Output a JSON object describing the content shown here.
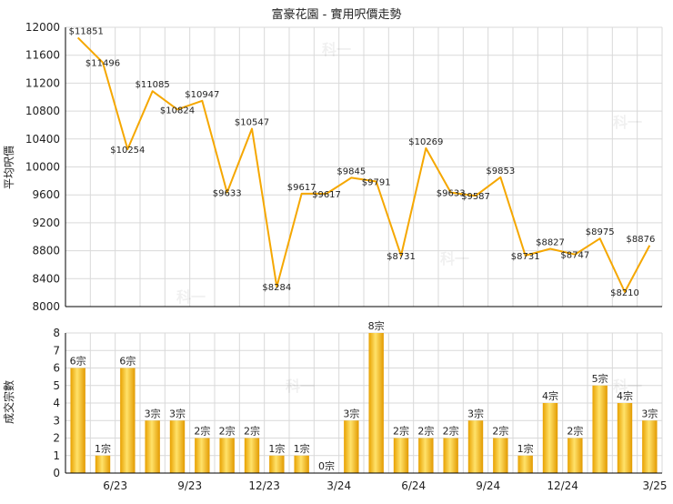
{
  "title": "富豪花園 - 實用呎價走勢",
  "watermark": "科一",
  "colors": {
    "line": "#f5a700",
    "bar_light": "#ffe26a",
    "bar_dark": "#e8a100",
    "grid": "#d9d9d9",
    "axis": "#000000"
  },
  "x_tick_labels": [
    "6/23",
    "9/23",
    "12/23",
    "3/24",
    "6/24",
    "9/24",
    "12/24",
    "3/25"
  ],
  "chart_data": [
    {
      "type": "line",
      "ylabel": "平均呎價",
      "ylim": [
        8000,
        12000
      ],
      "yticks": [
        "8000",
        "8400",
        "8800",
        "9200",
        "9600",
        "10000",
        "10400",
        "10800",
        "11200",
        "11600",
        "12000"
      ],
      "values": [
        11851,
        11496,
        10254,
        11085,
        10824,
        10947,
        9633,
        10547,
        8284,
        9617,
        9617,
        9845,
        9791,
        8731,
        10269,
        9633,
        9587,
        9853,
        8731,
        8827,
        8747,
        8975,
        8210,
        8876
      ],
      "labels": [
        "$11851",
        "$11496",
        "$10254",
        "$11085",
        "$10824",
        "$10947",
        "$9633",
        "$10547",
        "$8284",
        "$9617",
        "$9617",
        "$9845",
        "$9791",
        "$8731",
        "$10269",
        "$9633",
        "$9587",
        "$9853",
        "$8731",
        "$8827",
        "$8747",
        "$8975",
        "$8210",
        "$8876"
      ]
    },
    {
      "type": "bar",
      "ylabel": "成交宗數",
      "ylim": [
        0,
        8
      ],
      "yticks": [
        "0",
        "1",
        "2",
        "3",
        "4",
        "5",
        "6",
        "7",
        "8"
      ],
      "values": [
        6,
        1,
        6,
        3,
        3,
        2,
        2,
        2,
        1,
        1,
        0,
        3,
        8,
        2,
        2,
        2,
        3,
        2,
        1,
        4,
        2,
        5,
        4,
        3
      ],
      "labels": [
        "6宗",
        "1宗",
        "6宗",
        "3宗",
        "3宗",
        "2宗",
        "2宗",
        "2宗",
        "1宗",
        "1宗",
        "0宗",
        "3宗",
        "8宗",
        "2宗",
        "2宗",
        "2宗",
        "3宗",
        "2宗",
        "1宗",
        "4宗",
        "2宗",
        "5宗",
        "4宗",
        "3宗"
      ]
    }
  ]
}
